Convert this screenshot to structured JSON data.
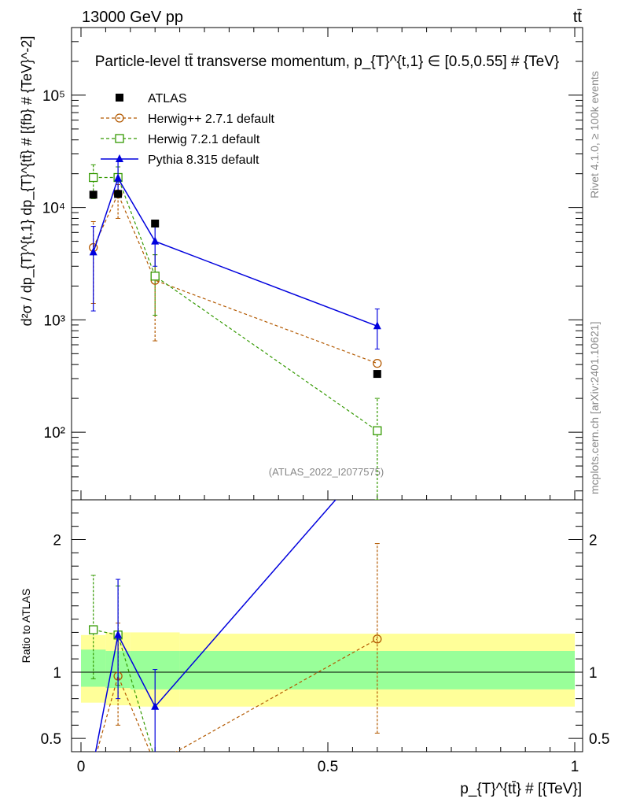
{
  "header": {
    "left": "13000 GeV pp",
    "right": "tt̄"
  },
  "side_labels": {
    "rivet": "Rivet 4.1.0, ≥ 100k events",
    "mcplots": "mcplots.cern.ch [arXiv:2401.10621]"
  },
  "chart_data": {
    "type": "scatter",
    "title": "Particle-level tt̄ transverse momentum, p_{T}^{t,1} ∈ [0.5,0.55] # {TeV}",
    "xlabel": "p_{T}^{tt̄} # [{TeV}]",
    "ylabel": "d²σ / dp_{T}^{t,1} dp_{T}^{tt̄} # [{fb} # {TeV}^-2]",
    "ratio_ylabel": "Ratio to ATLAS",
    "watermark": "(ATLAS_2022_I2077575)",
    "xlim": [
      0,
      1
    ],
    "ylim": [
      25,
      400000
    ],
    "yscale": "log",
    "ratio_ylim": [
      0.4,
      2.3
    ],
    "x_ticks": [
      "0",
      "0.5",
      "1"
    ],
    "y_ticks": [
      "10²",
      "10³",
      "10⁴",
      "10⁵"
    ],
    "ratio_ticks": [
      "0.5",
      "1",
      "2"
    ],
    "x": [
      0.025,
      0.075,
      0.15,
      0.6
    ],
    "bin_edges": [
      0,
      0.05,
      0.1,
      0.2,
      1.0
    ],
    "series": [
      {
        "name": "ATLAS",
        "color": "#000000",
        "marker": "square-filled",
        "values": [
          13000,
          13200,
          7200,
          330
        ],
        "ratio_values": [
          1.0,
          1.0,
          1.0,
          1.0
        ]
      },
      {
        "name": "Herwig++ 2.7.1 default",
        "color": "#b35900",
        "marker": "circle-open",
        "dash": true,
        "values": [
          4400,
          13200,
          2250,
          410
        ],
        "err_low": [
          1400,
          8000,
          650,
          null
        ],
        "err_high": [
          7500,
          16000,
          3800,
          null
        ],
        "ratio_values": [
          0.3,
          0.97,
          0.31,
          1.25
        ],
        "ratio_err_low": [
          null,
          0.6,
          null,
          0.54
        ],
        "ratio_err_high": [
          null,
          1.37,
          null,
          1.97
        ]
      },
      {
        "name": "Herwig 7.2.1 default",
        "color": "#339900",
        "marker": "square-open",
        "dash": true,
        "values": [
          18500,
          18500,
          2450,
          103
        ],
        "err_low": [
          12000,
          14000,
          1100,
          25
        ],
        "err_high": [
          24000,
          23000,
          3800,
          200
        ],
        "ratio_values": [
          1.32,
          1.28,
          0.34,
          0.28
        ],
        "ratio_err_low": [
          0.95,
          0.9,
          null,
          null
        ],
        "ratio_err_high": [
          1.73,
          1.65,
          null,
          null
        ]
      },
      {
        "name": "Pythia 8.315 default",
        "color": "#0000dd",
        "marker": "triangle-filled",
        "dash": false,
        "values": [
          4000,
          18200,
          5000,
          880
        ],
        "err_low": [
          1200,
          14000,
          3000,
          550
        ],
        "err_high": [
          6800,
          27000,
          7000,
          1250
        ],
        "ratio_values": [
          0.31,
          1.28,
          0.74,
          2.66
        ],
        "ratio_err_low": [
          null,
          0.8,
          0.28,
          null
        ],
        "ratio_err_high": [
          null,
          1.7,
          1.02,
          null
        ]
      }
    ],
    "ratio_bands": {
      "yellow": [
        [
          0.77,
          1.28
        ],
        [
          0.75,
          1.3
        ],
        [
          0.74,
          1.3
        ],
        [
          0.74,
          1.29
        ]
      ],
      "green": [
        [
          0.89,
          1.17
        ],
        [
          0.88,
          1.16
        ],
        [
          0.87,
          1.16
        ],
        [
          0.87,
          1.16
        ]
      ],
      "yellow_color": "#ffff99",
      "green_color": "#99ff99"
    }
  }
}
